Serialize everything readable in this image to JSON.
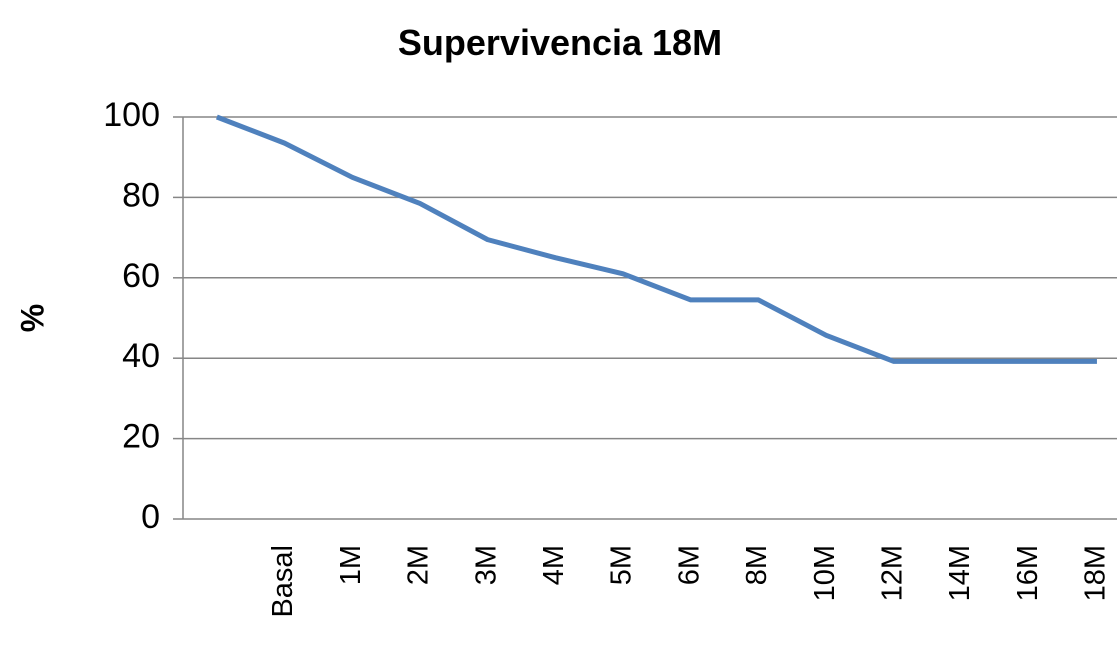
{
  "chart_data": {
    "type": "line",
    "title": "Supervivencia 18M",
    "y_label": "%",
    "categories": [
      null,
      "Basal",
      "1M",
      "2M",
      "3M",
      "4M",
      "5M",
      "6M",
      "8M",
      "10M",
      "12M",
      "14M",
      "16M",
      "18M"
    ],
    "series": [
      {
        "name": "Supervivencia",
        "color": "#4f81bd",
        "values": [
          100,
          93.5,
          85,
          78.5,
          69.5,
          65,
          61,
          54.5,
          54.5,
          45.7,
          39.2,
          39.2,
          39.2,
          39.2
        ]
      }
    ],
    "ylim": [
      0,
      100
    ],
    "yticks": [
      0,
      20,
      40,
      60,
      80,
      100
    ],
    "grid": true
  }
}
